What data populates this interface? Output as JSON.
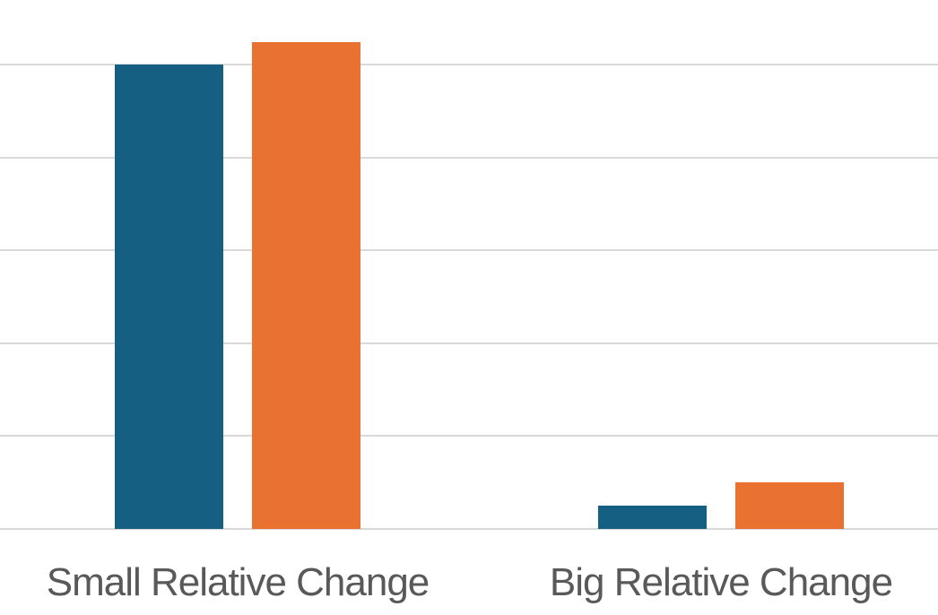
{
  "chart_data": {
    "type": "bar",
    "title": "",
    "xlabel": "",
    "ylabel": "",
    "categories": [
      "Small Relative Change",
      "Big Relative Change"
    ],
    "series": [
      {
        "name": "blue",
        "color": "#156082",
        "values": [
          100,
          5
        ]
      },
      {
        "name": "orange",
        "color": "#E97132",
        "values": [
          105,
          10
        ]
      }
    ],
    "ylim": [
      0,
      114
    ],
    "gridline_interval": 20,
    "grid": true,
    "legend": false,
    "y_tick_labels_visible": false,
    "gridline_color": "#D9D9D9",
    "axis_line_color": "#D9D9D9",
    "label_color": "#595959",
    "background": "#FFFFFF"
  }
}
